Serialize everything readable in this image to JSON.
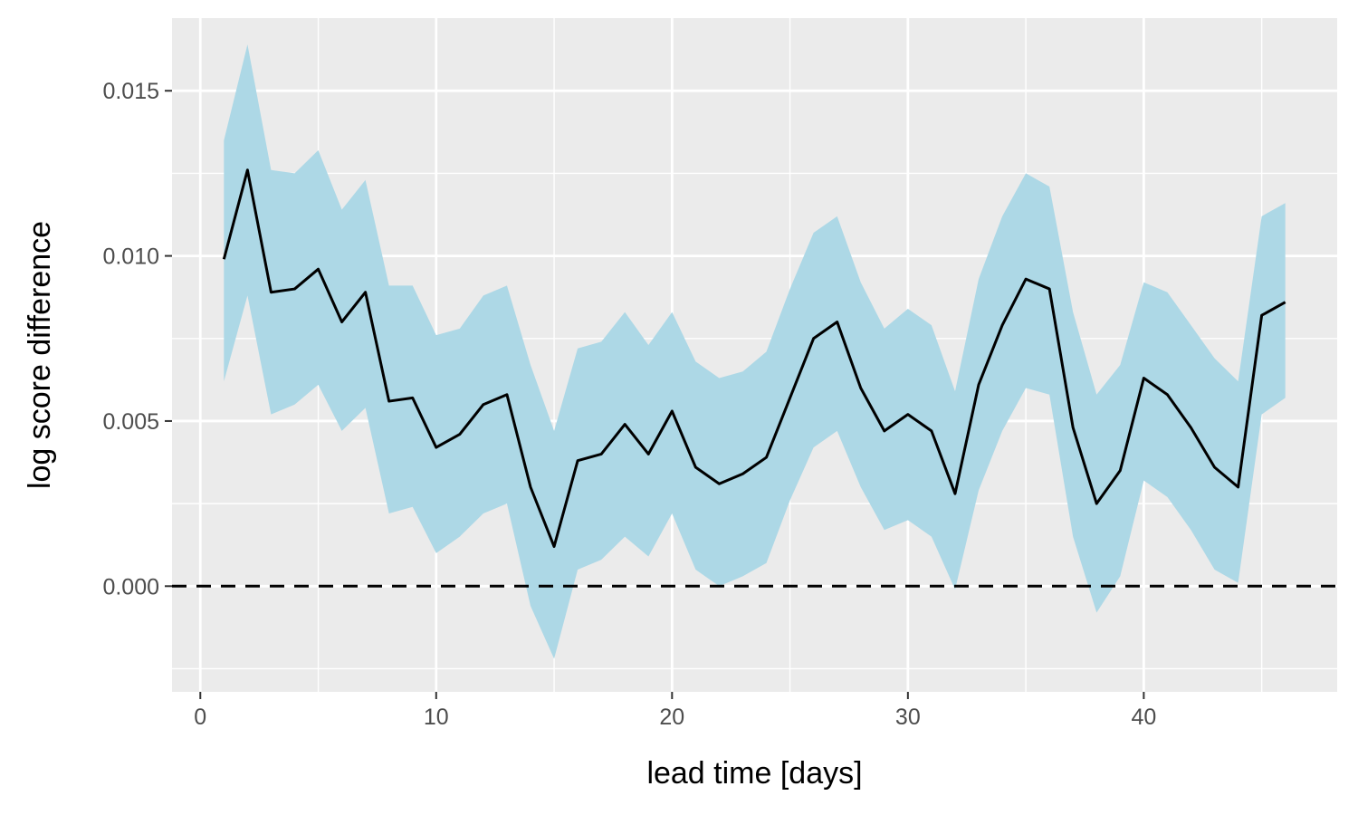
{
  "chart_data": {
    "type": "line",
    "xlabel": "lead time [days]",
    "ylabel": "log score difference",
    "xlim": [
      -1.2,
      48.2
    ],
    "ylim": [
      -0.0032,
      0.0172
    ],
    "x_ticks": [
      0,
      10,
      20,
      30,
      40
    ],
    "x_tick_labels": [
      "0",
      "10",
      "20",
      "30",
      "40"
    ],
    "y_ticks": [
      0.0,
      0.005,
      0.01,
      0.015
    ],
    "y_tick_labels": [
      "0.000",
      "0.005",
      "0.010",
      "0.015"
    ],
    "grid": true,
    "reference_line": {
      "y": 0,
      "style": "dashed"
    },
    "series": [
      {
        "type": "ribbon",
        "x": [
          1,
          2,
          3,
          4,
          5,
          6,
          7,
          8,
          9,
          10,
          11,
          12,
          13,
          14,
          15,
          16,
          17,
          18,
          19,
          20,
          21,
          22,
          23,
          24,
          25,
          26,
          27,
          28,
          29,
          30,
          31,
          32,
          33,
          34,
          35,
          36,
          37,
          38,
          39,
          40,
          41,
          42,
          43,
          44,
          45,
          46
        ],
        "lower": [
          0.0062,
          0.0088,
          0.0052,
          0.0055,
          0.0061,
          0.0047,
          0.0054,
          0.0022,
          0.0024,
          0.001,
          0.0015,
          0.0022,
          0.0025,
          -0.0006,
          -0.0022,
          0.0005,
          0.0008,
          0.0015,
          0.0009,
          0.0022,
          0.0005,
          0.0,
          0.0003,
          0.0007,
          0.0026,
          0.0042,
          0.0047,
          0.003,
          0.0017,
          0.002,
          0.0015,
          -0.0001,
          0.0029,
          0.0047,
          0.006,
          0.0058,
          0.0015,
          -0.0008,
          0.0003,
          0.0032,
          0.0027,
          0.0017,
          0.0005,
          0.0001,
          0.0052,
          0.0057
        ],
        "upper": [
          0.0135,
          0.0164,
          0.0126,
          0.0125,
          0.0132,
          0.0114,
          0.0123,
          0.0091,
          0.0091,
          0.0076,
          0.0078,
          0.0088,
          0.0091,
          0.0067,
          0.0047,
          0.0072,
          0.0074,
          0.0083,
          0.0073,
          0.0083,
          0.0068,
          0.0063,
          0.0065,
          0.0071,
          0.009,
          0.0107,
          0.0112,
          0.0092,
          0.0078,
          0.0084,
          0.0079,
          0.0059,
          0.0093,
          0.0112,
          0.0125,
          0.0121,
          0.0083,
          0.0058,
          0.0067,
          0.0092,
          0.0089,
          0.0079,
          0.0069,
          0.0062,
          0.0112,
          0.0116
        ],
        "color": "#add8e6"
      },
      {
        "type": "line",
        "x": [
          1,
          2,
          3,
          4,
          5,
          6,
          7,
          8,
          9,
          10,
          11,
          12,
          13,
          14,
          15,
          16,
          17,
          18,
          19,
          20,
          21,
          22,
          23,
          24,
          25,
          26,
          27,
          28,
          29,
          30,
          31,
          32,
          33,
          34,
          35,
          36,
          37,
          38,
          39,
          40,
          41,
          42,
          43,
          44,
          45,
          46
        ],
        "values": [
          0.0099,
          0.0126,
          0.0089,
          0.009,
          0.0096,
          0.008,
          0.0089,
          0.0056,
          0.0057,
          0.0042,
          0.0046,
          0.0055,
          0.0058,
          0.003,
          0.0012,
          0.0038,
          0.004,
          0.0049,
          0.004,
          0.0053,
          0.0036,
          0.0031,
          0.0034,
          0.0039,
          0.0057,
          0.0075,
          0.008,
          0.006,
          0.0047,
          0.0052,
          0.0047,
          0.0028,
          0.0061,
          0.0079,
          0.0093,
          0.009,
          0.0048,
          0.0025,
          0.0035,
          0.0063,
          0.0058,
          0.0048,
          0.0036,
          0.003,
          0.0082,
          0.0086
        ],
        "color": "#000000"
      }
    ],
    "colors": {
      "panel_background": "#ebebeb",
      "grid": "#ffffff",
      "ribbon": "#add8e6",
      "line": "#000000",
      "tick_text": "#4d4d4d"
    }
  }
}
